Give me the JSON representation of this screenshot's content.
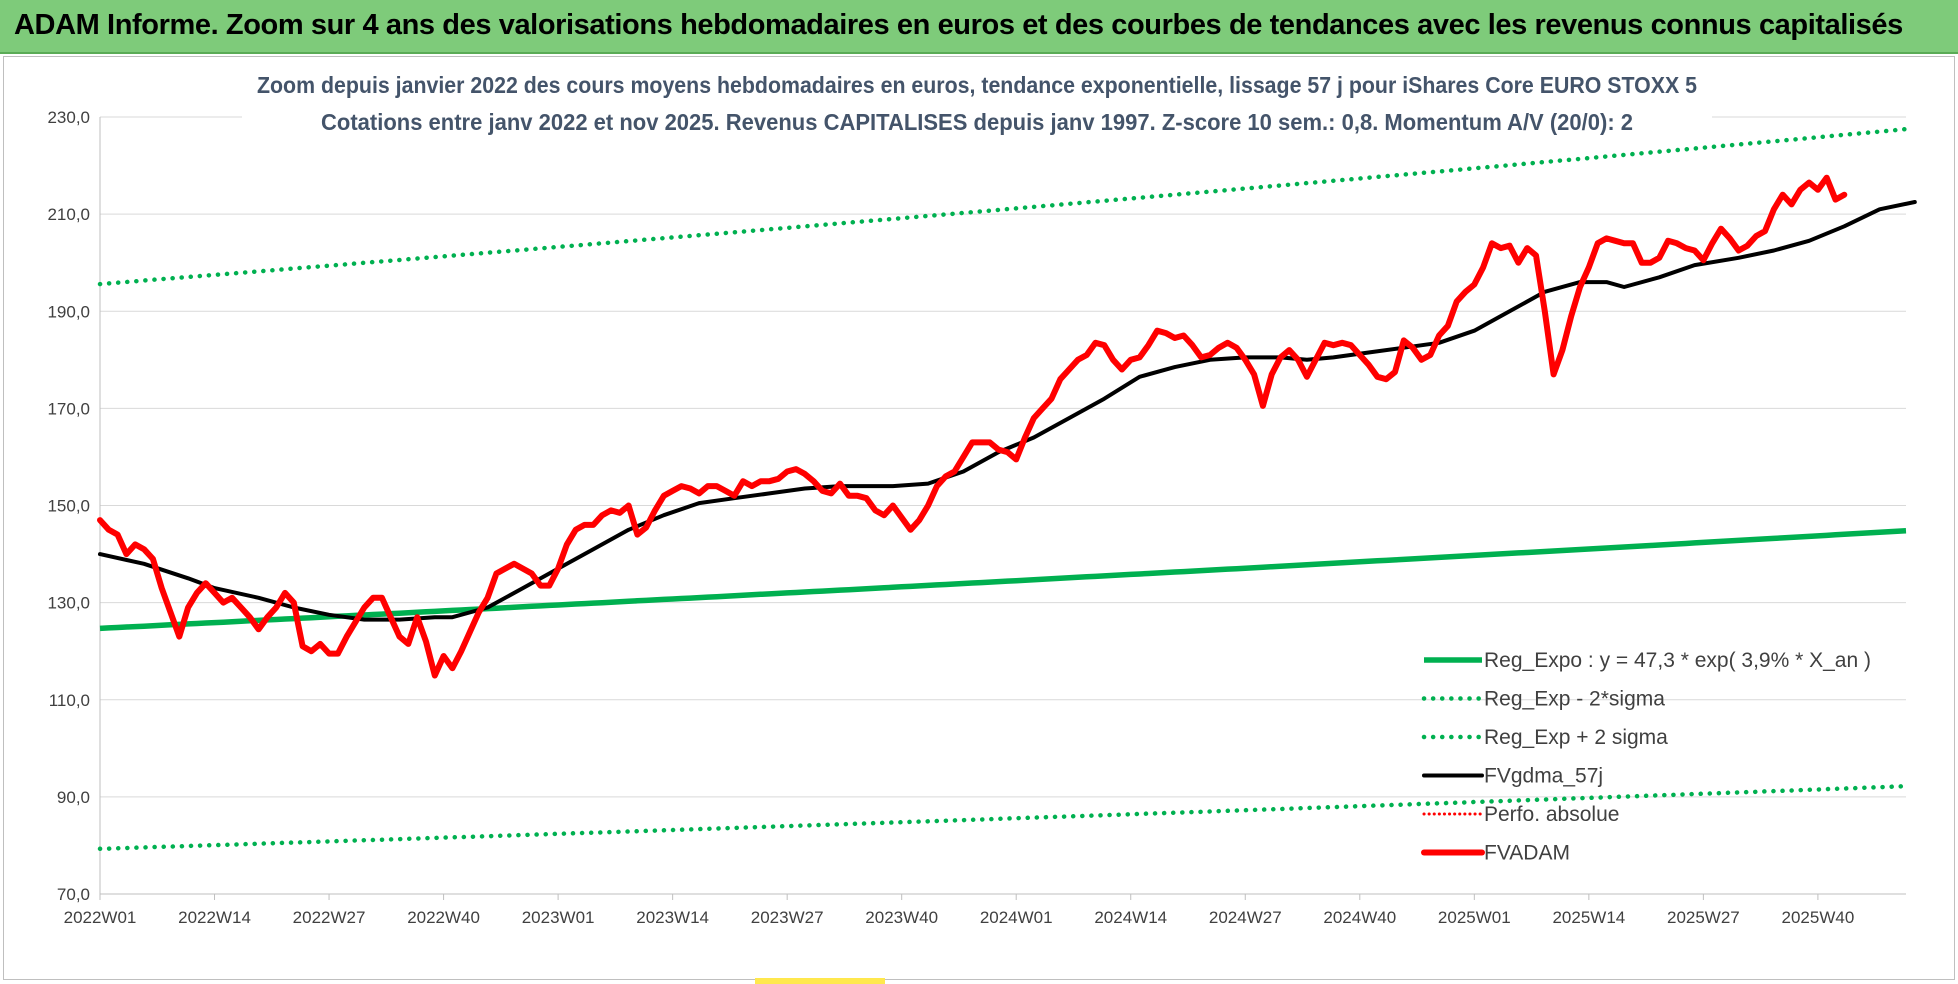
{
  "header": {
    "title": "ADAM Informe. Zoom sur 4 ans des valorisations hebdomadaires en euros et des courbes de tendances avec les revenus connus capitalisés"
  },
  "chart_data": {
    "type": "line",
    "subtitle_lines": [
      "Zoom depuis janvier 2022 des cours moyens hebdomadaires en euros, tendance exponentielle, lissage 57 j pour iShares Core EURO STOXX 5",
      "Cotations entre janv 2022 et nov 2025. Revenus CAPITALISES depuis janv 1997. Z-score 10 sem.: 0,8. Momentum A/V (20/0): 2"
    ],
    "ylim": [
      70,
      230
    ],
    "y_ticks": [
      "70,0",
      "90,0",
      "110,0",
      "130,0",
      "150,0",
      "170,0",
      "190,0",
      "210,0",
      "230,0"
    ],
    "x_tick_labels": [
      "2022W01",
      "2022W14",
      "2022W27",
      "2022W40",
      "2023W01",
      "2023W14",
      "2023W27",
      "2023W40",
      "2024W01",
      "2024W14",
      "2024W27",
      "2024W40",
      "2025W01",
      "2025W14",
      "2025W27",
      "2025W40"
    ],
    "x_tick_index": [
      0,
      13,
      26,
      39,
      52,
      65,
      78,
      91,
      104,
      117,
      130,
      143,
      156,
      169,
      182,
      195
    ],
    "n_weeks": 206,
    "colors": {
      "green": "#00b050",
      "black": "#000000",
      "red": "#ff0000",
      "grid": "#d9d9d9"
    },
    "series": [
      {
        "name": "Reg_Expo : y = 47,3 * exp( 3,9% *  X_an )",
        "kind": "exp",
        "start": 124.7,
        "end": 144.8,
        "style": "green-solid"
      },
      {
        "name": "Reg_Exp - 2*sigma",
        "kind": "exp",
        "start": 79.3,
        "end": 92.2,
        "style": "green-dotted"
      },
      {
        "name": "Reg_Exp + 2 sigma",
        "kind": "exp",
        "start": 195.6,
        "end": 227.5,
        "style": "green-dotted"
      },
      {
        "name": "FVgdma_57j",
        "kind": "points",
        "style": "black-solid",
        "points": [
          [
            0,
            140
          ],
          [
            5,
            138
          ],
          [
            10,
            135
          ],
          [
            13,
            133
          ],
          [
            18,
            131
          ],
          [
            22,
            129
          ],
          [
            26,
            127.5
          ],
          [
            30,
            126.5
          ],
          [
            34,
            126.5
          ],
          [
            38,
            127
          ],
          [
            40,
            127
          ],
          [
            44,
            129
          ],
          [
            48,
            133
          ],
          [
            52,
            137
          ],
          [
            56,
            141
          ],
          [
            60,
            145
          ],
          [
            64,
            148
          ],
          [
            68,
            150.5
          ],
          [
            72,
            151.5
          ],
          [
            76,
            152.5
          ],
          [
            80,
            153.5
          ],
          [
            84,
            154
          ],
          [
            90,
            154
          ],
          [
            94,
            154.5
          ],
          [
            98,
            157
          ],
          [
            102,
            161
          ],
          [
            106,
            164
          ],
          [
            110,
            168
          ],
          [
            114,
            172
          ],
          [
            118,
            176.5
          ],
          [
            122,
            178.5
          ],
          [
            126,
            180
          ],
          [
            130,
            180.5
          ],
          [
            134,
            180.5
          ],
          [
            137,
            180
          ],
          [
            140,
            180.5
          ],
          [
            144,
            181.5
          ],
          [
            148,
            182.5
          ],
          [
            152,
            183.5
          ],
          [
            156,
            186
          ],
          [
            160,
            190
          ],
          [
            164,
            194
          ],
          [
            168,
            196
          ],
          [
            171,
            196
          ],
          [
            173,
            195
          ],
          [
            177,
            197
          ],
          [
            181,
            199.5
          ],
          [
            186,
            201
          ],
          [
            190,
            202.5
          ],
          [
            194,
            204.5
          ],
          [
            198,
            207.5
          ],
          [
            202,
            211
          ],
          [
            206,
            212.5
          ]
        ]
      },
      {
        "name": "Perfo. absolue",
        "kind": "none",
        "style": "red-dotted",
        "points": []
      },
      {
        "name": "FVADAM",
        "kind": "points",
        "style": "red-thick",
        "points": [
          [
            0,
            147
          ],
          [
            1,
            145
          ],
          [
            2,
            144
          ],
          [
            3,
            140
          ],
          [
            4,
            142
          ],
          [
            5,
            141
          ],
          [
            6,
            139
          ],
          [
            7,
            133
          ],
          [
            8,
            128
          ],
          [
            9,
            123
          ],
          [
            10,
            129
          ],
          [
            11,
            132
          ],
          [
            12,
            134
          ],
          [
            13,
            132
          ],
          [
            14,
            130
          ],
          [
            15,
            131
          ],
          [
            16,
            129
          ],
          [
            17,
            127
          ],
          [
            18,
            124.5
          ],
          [
            19,
            127
          ],
          [
            20,
            129
          ],
          [
            21,
            132
          ],
          [
            22,
            130
          ],
          [
            23,
            121
          ],
          [
            24,
            120
          ],
          [
            25,
            121.5
          ],
          [
            26,
            119.5
          ],
          [
            27,
            119.5
          ],
          [
            28,
            123
          ],
          [
            29,
            126
          ],
          [
            30,
            129
          ],
          [
            31,
            131
          ],
          [
            32,
            131
          ],
          [
            33,
            127
          ],
          [
            34,
            123
          ],
          [
            35,
            121.5
          ],
          [
            36,
            127
          ],
          [
            37,
            122
          ],
          [
            38,
            115
          ],
          [
            39,
            119
          ],
          [
            40,
            116.5
          ],
          [
            41,
            120
          ],
          [
            42,
            124
          ],
          [
            43,
            128
          ],
          [
            44,
            131
          ],
          [
            45,
            136
          ],
          [
            46,
            137
          ],
          [
            47,
            138
          ],
          [
            48,
            137
          ],
          [
            49,
            136
          ],
          [
            50,
            133.5
          ],
          [
            51,
            133.5
          ],
          [
            52,
            137
          ],
          [
            53,
            142
          ],
          [
            54,
            145
          ],
          [
            55,
            146
          ],
          [
            56,
            146
          ],
          [
            57,
            148
          ],
          [
            58,
            149
          ],
          [
            59,
            148.5
          ],
          [
            60,
            150
          ],
          [
            61,
            144
          ],
          [
            62,
            145.5
          ],
          [
            63,
            149
          ],
          [
            64,
            152
          ],
          [
            65,
            153
          ],
          [
            66,
            154
          ],
          [
            67,
            153.5
          ],
          [
            68,
            152.5
          ],
          [
            69,
            154
          ],
          [
            70,
            154
          ],
          [
            71,
            153
          ],
          [
            72,
            152
          ],
          [
            73,
            155
          ],
          [
            74,
            154
          ],
          [
            75,
            155
          ],
          [
            76,
            155
          ],
          [
            77,
            155.5
          ],
          [
            78,
            157
          ],
          [
            79,
            157.5
          ],
          [
            80,
            156.5
          ],
          [
            81,
            155
          ],
          [
            82,
            153
          ],
          [
            83,
            152.5
          ],
          [
            84,
            154.5
          ],
          [
            85,
            152
          ],
          [
            86,
            152
          ],
          [
            87,
            151.5
          ],
          [
            88,
            149
          ],
          [
            89,
            148
          ],
          [
            90,
            150
          ],
          [
            91,
            147.5
          ],
          [
            92,
            145
          ],
          [
            93,
            147
          ],
          [
            94,
            150
          ],
          [
            95,
            154
          ],
          [
            96,
            156
          ],
          [
            97,
            157
          ],
          [
            98,
            160
          ],
          [
            99,
            163
          ],
          [
            100,
            163
          ],
          [
            101,
            163
          ],
          [
            102,
            161.5
          ],
          [
            103,
            161
          ],
          [
            104,
            159.5
          ],
          [
            105,
            164
          ],
          [
            106,
            168
          ],
          [
            107,
            170
          ],
          [
            108,
            172
          ],
          [
            109,
            176
          ],
          [
            110,
            178
          ],
          [
            111,
            180
          ],
          [
            112,
            181
          ],
          [
            113,
            183.5
          ],
          [
            114,
            183
          ],
          [
            115,
            180
          ],
          [
            116,
            178
          ],
          [
            117,
            180
          ],
          [
            118,
            180.5
          ],
          [
            119,
            183
          ],
          [
            120,
            186
          ],
          [
            121,
            185.5
          ],
          [
            122,
            184.5
          ],
          [
            123,
            185
          ],
          [
            124,
            183
          ],
          [
            125,
            180.5
          ],
          [
            126,
            181
          ],
          [
            127,
            182.5
          ],
          [
            128,
            183.5
          ],
          [
            129,
            182.5
          ],
          [
            130,
            180
          ],
          [
            131,
            177
          ],
          [
            132,
            170.5
          ],
          [
            133,
            177
          ],
          [
            134,
            180.5
          ],
          [
            135,
            182
          ],
          [
            136,
            180
          ],
          [
            137,
            176.5
          ],
          [
            138,
            180
          ],
          [
            139,
            183.5
          ],
          [
            140,
            183
          ],
          [
            141,
            183.5
          ],
          [
            142,
            183
          ],
          [
            143,
            181
          ],
          [
            144,
            179
          ],
          [
            145,
            176.5
          ],
          [
            146,
            176
          ],
          [
            147,
            177.5
          ],
          [
            148,
            184
          ],
          [
            149,
            182.5
          ],
          [
            150,
            180
          ],
          [
            151,
            181
          ],
          [
            152,
            185
          ],
          [
            153,
            187
          ],
          [
            154,
            192
          ],
          [
            155,
            194
          ],
          [
            156,
            195.5
          ],
          [
            157,
            199
          ],
          [
            158,
            204
          ],
          [
            159,
            203
          ],
          [
            160,
            203.5
          ],
          [
            161,
            200
          ],
          [
            162,
            203
          ],
          [
            163,
            201.5
          ],
          [
            164,
            190
          ],
          [
            165,
            177
          ],
          [
            166,
            182
          ],
          [
            167,
            189
          ],
          [
            168,
            195
          ],
          [
            169,
            199
          ],
          [
            170,
            204
          ],
          [
            171,
            205
          ],
          [
            172,
            204.5
          ],
          [
            173,
            204
          ],
          [
            174,
            204
          ],
          [
            175,
            200
          ],
          [
            176,
            200
          ],
          [
            177,
            201
          ],
          [
            178,
            204.5
          ],
          [
            179,
            204
          ],
          [
            180,
            203
          ],
          [
            181,
            202.5
          ],
          [
            182,
            200.5
          ],
          [
            183,
            204
          ],
          [
            184,
            207
          ],
          [
            185,
            205
          ],
          [
            186,
            202.5
          ],
          [
            187,
            203.5
          ],
          [
            188,
            205.5
          ],
          [
            189,
            206.5
          ],
          [
            190,
            211
          ],
          [
            191,
            214
          ],
          [
            192,
            212
          ],
          [
            193,
            215
          ],
          [
            194,
            216.5
          ],
          [
            195,
            215
          ],
          [
            196,
            217.5
          ],
          [
            197,
            213
          ],
          [
            198,
            214
          ]
        ]
      }
    ]
  }
}
